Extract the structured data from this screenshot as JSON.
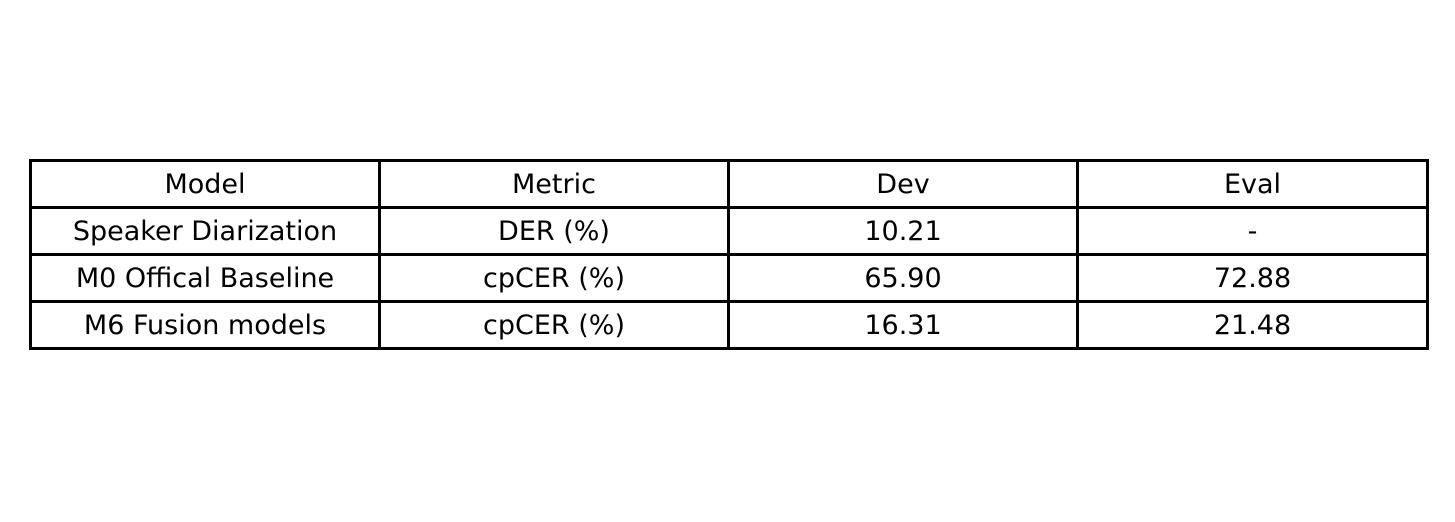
{
  "chart_data": {
    "type": "table",
    "columns": [
      "Model",
      "Metric",
      "Dev",
      "Eval"
    ],
    "rows": [
      [
        "Speaker Diarization",
        "DER (%)",
        "10.21",
        "-"
      ],
      [
        "M0 Offical Baseline",
        "cpCER (%)",
        "65.90",
        "72.88"
      ],
      [
        "M6 Fusion models",
        "cpCER (%)",
        "16.31",
        "21.48"
      ]
    ]
  }
}
